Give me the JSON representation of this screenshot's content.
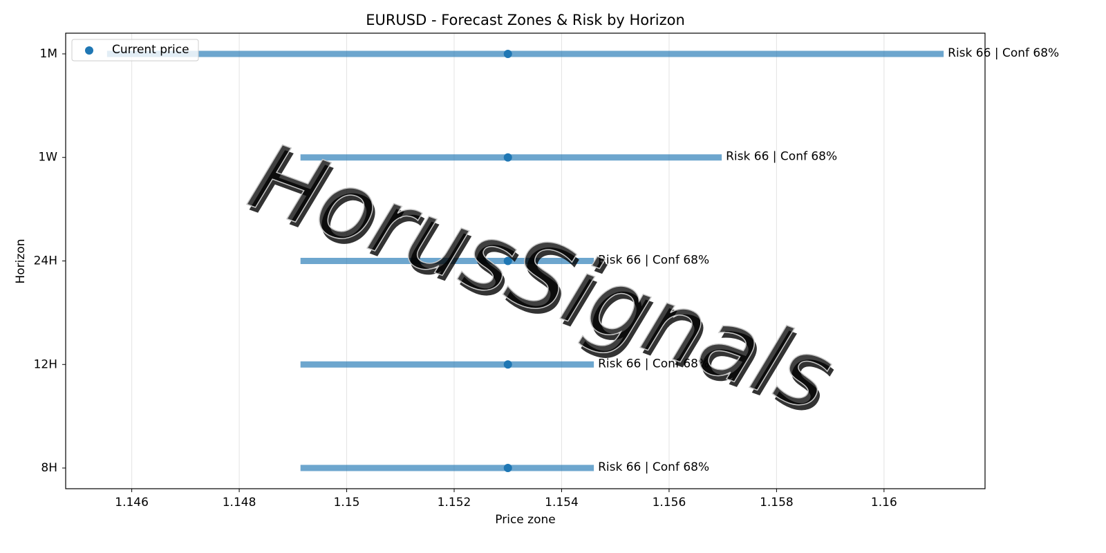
{
  "chart_data": {
    "type": "range",
    "title": "EURUSD - Forecast Zones & Risk by Horizon",
    "xlabel": "Price zone",
    "ylabel": "Horizon",
    "watermark": "HorusSignals",
    "categories": [
      "8H",
      "12H",
      "24H",
      "1W",
      "1M"
    ],
    "low": [
      1.14914,
      1.14914,
      1.14914,
      1.14914,
      1.14554
    ],
    "high": [
      1.1546,
      1.1546,
      1.1546,
      1.15698,
      1.16111
    ],
    "range_color": "#1f77b4",
    "range_labels": [
      "Risk 66 | Conf 68%",
      "Risk 66 | Conf 68%",
      "Risk 66 | Conf 68%",
      "Risk 66 | Conf 68%",
      "Risk 66 | Conf 68%"
    ],
    "series": [
      {
        "name": "Current price",
        "color": "#1f77b4",
        "values": [
          1.153,
          1.153,
          1.153,
          1.153,
          1.153
        ]
      }
    ],
    "xlim": [
      1.14477,
      1.16188
    ],
    "xticks": [
      1.146,
      1.148,
      1.15,
      1.152,
      1.154,
      1.156,
      1.158,
      1.16
    ],
    "grid": true,
    "legend": "upper left"
  }
}
